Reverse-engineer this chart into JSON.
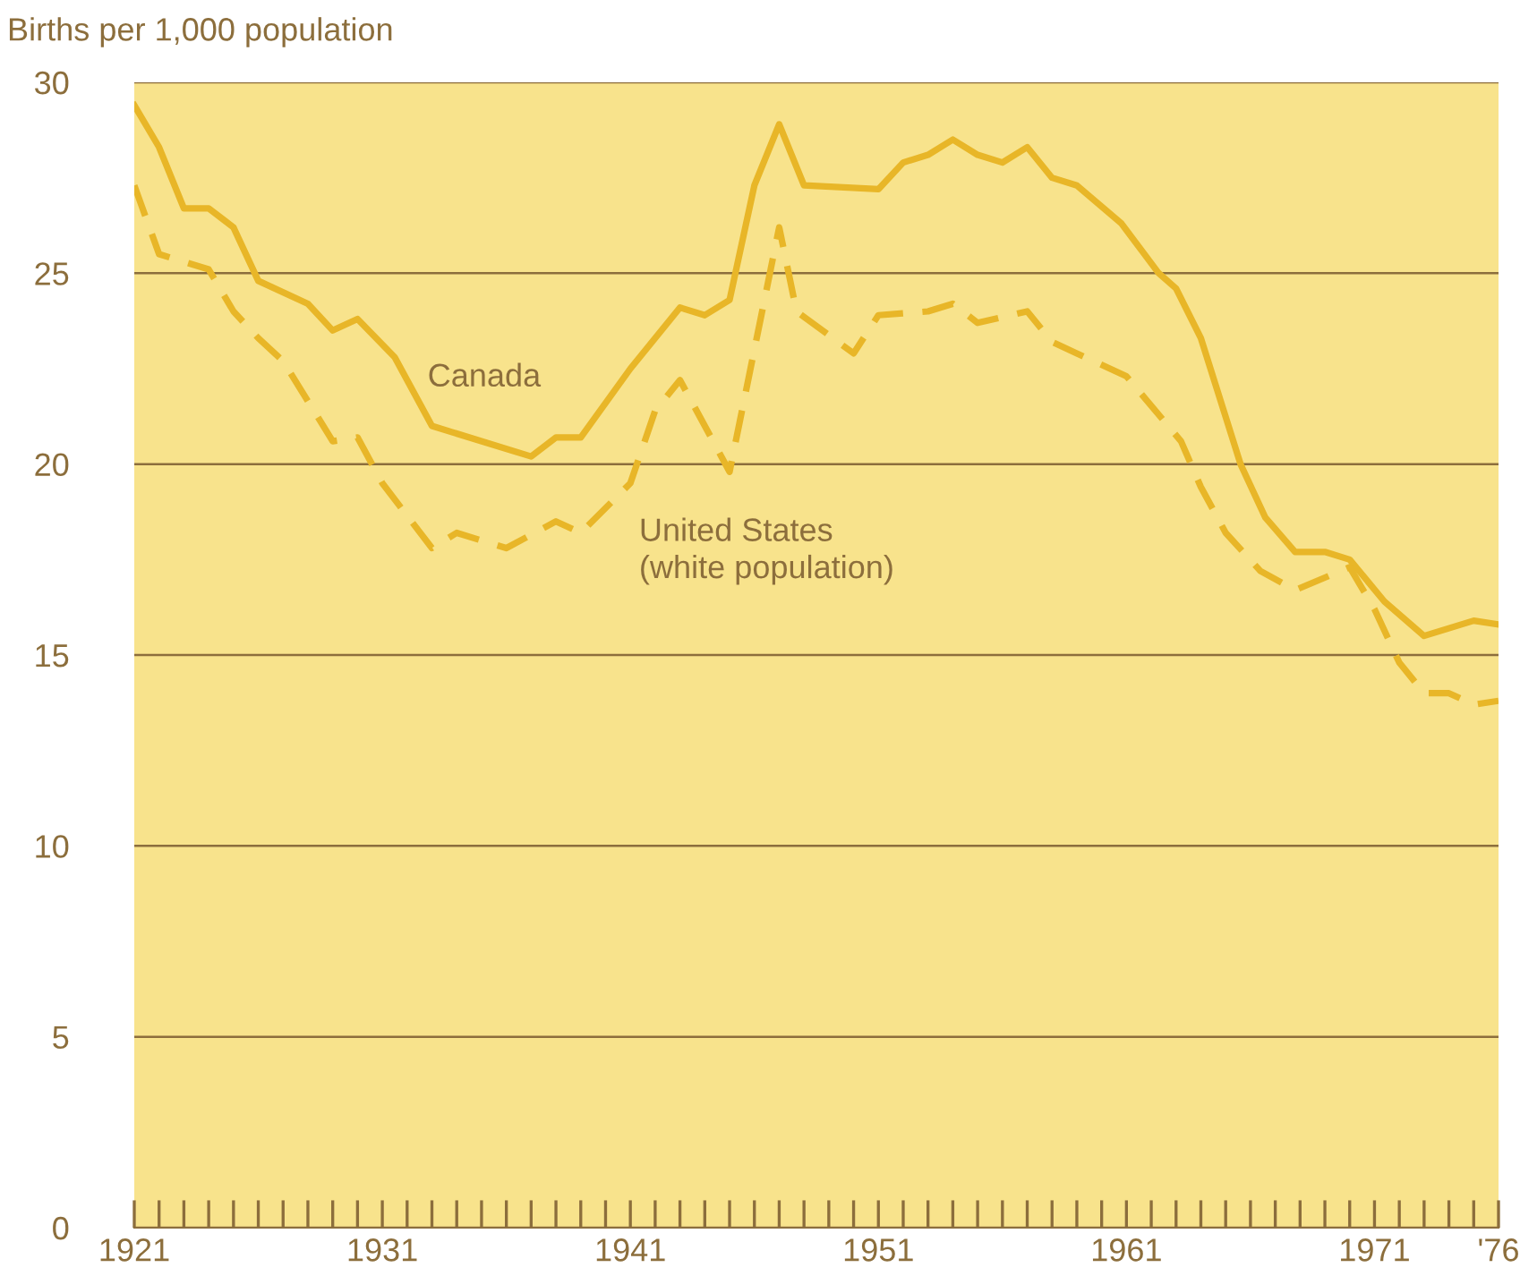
{
  "chart_data": {
    "type": "line",
    "ylabel": "Births per 1,000 population",
    "xlim": [
      1921,
      1976
    ],
    "ylim": [
      0,
      30
    ],
    "yticks": [
      0,
      5,
      10,
      15,
      20,
      25,
      30
    ],
    "xticks": [
      1921,
      {
        "value": 1922,
        "label": null
      },
      {
        "value": 1923,
        "label": null
      },
      {
        "value": 1924,
        "label": null
      },
      {
        "value": 1925,
        "label": null
      },
      {
        "value": 1926,
        "label": null
      },
      {
        "value": 1927,
        "label": null
      },
      {
        "value": 1928,
        "label": null
      },
      {
        "value": 1929,
        "label": null
      },
      {
        "value": 1930,
        "label": null
      },
      1931,
      {
        "value": 1932,
        "label": null
      },
      {
        "value": 1933,
        "label": null
      },
      {
        "value": 1934,
        "label": null
      },
      {
        "value": 1935,
        "label": null
      },
      {
        "value": 1936,
        "label": null
      },
      {
        "value": 1937,
        "label": null
      },
      {
        "value": 1938,
        "label": null
      },
      {
        "value": 1939,
        "label": null
      },
      {
        "value": 1940,
        "label": null
      },
      1941,
      {
        "value": 1942,
        "label": null
      },
      {
        "value": 1943,
        "label": null
      },
      {
        "value": 1944,
        "label": null
      },
      {
        "value": 1945,
        "label": null
      },
      {
        "value": 1946,
        "label": null
      },
      {
        "value": 1947,
        "label": null
      },
      {
        "value": 1948,
        "label": null
      },
      {
        "value": 1949,
        "label": null
      },
      {
        "value": 1950,
        "label": null
      },
      1951,
      {
        "value": 1952,
        "label": null
      },
      {
        "value": 1953,
        "label": null
      },
      {
        "value": 1954,
        "label": null
      },
      {
        "value": 1955,
        "label": null
      },
      {
        "value": 1956,
        "label": null
      },
      {
        "value": 1957,
        "label": null
      },
      {
        "value": 1958,
        "label": null
      },
      {
        "value": 1959,
        "label": null
      },
      {
        "value": 1960,
        "label": null
      },
      1961,
      {
        "value": 1962,
        "label": null
      },
      {
        "value": 1963,
        "label": null
      },
      {
        "value": 1964,
        "label": null
      },
      {
        "value": 1965,
        "label": null
      },
      {
        "value": 1966,
        "label": null
      },
      {
        "value": 1967,
        "label": null
      },
      {
        "value": 1968,
        "label": null
      },
      {
        "value": 1969,
        "label": null
      },
      {
        "value": 1970,
        "label": null
      },
      1971,
      {
        "value": 1972,
        "label": null
      },
      {
        "value": 1973,
        "label": null
      },
      {
        "value": 1974,
        "label": null
      },
      {
        "value": 1975,
        "label": null
      },
      {
        "value": 1976,
        "label": "'76"
      }
    ],
    "grid": "y",
    "legend": false,
    "marker": "none",
    "series": [
      {
        "name": "Canada",
        "color": "#e8b628",
        "line_style": "solid",
        "x": [
          1921,
          1922,
          1923,
          1924,
          1925,
          1926,
          1928,
          1929,
          1930,
          1931.5,
          1933,
          1937,
          1938,
          1939,
          1941,
          1943,
          1944,
          1945,
          1946,
          1947,
          1948,
          1951,
          1952,
          1953,
          1954,
          1955,
          1956,
          1957,
          1958,
          1959,
          1960.8,
          1962.3,
          1963,
          1964,
          1965.6,
          1966.6,
          1967.8,
          1969,
          1970,
          1971.4,
          1973,
          1975,
          1976
        ],
        "values": [
          29.4,
          28.3,
          26.7,
          26.7,
          26.2,
          24.8,
          24.2,
          23.5,
          23.8,
          22.8,
          21.0,
          20.2,
          20.7,
          20.7,
          22.5,
          24.1,
          23.9,
          24.3,
          27.3,
          28.9,
          27.3,
          27.2,
          27.9,
          28.1,
          28.5,
          28.1,
          27.9,
          28.3,
          27.5,
          27.3,
          26.3,
          25.0,
          24.6,
          23.3,
          20.0,
          18.6,
          17.7,
          17.7,
          17.5,
          16.4,
          15.5,
          15.9,
          15.8
        ]
      },
      {
        "name": "United States\n(white population)",
        "color": "#e8b628",
        "line_style": "dashed",
        "x": [
          1921,
          1922,
          1924,
          1925,
          1926,
          1927,
          1929,
          1930,
          1931,
          1933,
          1934,
          1936,
          1938,
          1939,
          1941,
          1942,
          1943,
          1945,
          1947,
          1947.7,
          1950,
          1951,
          1953,
          1954,
          1955,
          1957,
          1958,
          1959,
          1961,
          1963.2,
          1964,
          1965,
          1966.4,
          1967.8,
          1970,
          1971,
          1972,
          1973,
          1974,
          1975,
          1976
        ],
        "values": [
          27.3,
          25.5,
          25.1,
          24.0,
          23.3,
          22.7,
          20.6,
          20.7,
          19.5,
          17.8,
          18.2,
          17.8,
          18.5,
          18.2,
          19.5,
          21.4,
          22.2,
          19.8,
          26.2,
          24.0,
          22.9,
          23.9,
          24.0,
          24.2,
          23.7,
          24.0,
          23.2,
          22.9,
          22.3,
          20.6,
          19.4,
          18.2,
          17.2,
          16.7,
          17.3,
          16.2,
          14.8,
          14.0,
          14.0,
          13.7,
          13.8
        ]
      }
    ]
  }
}
